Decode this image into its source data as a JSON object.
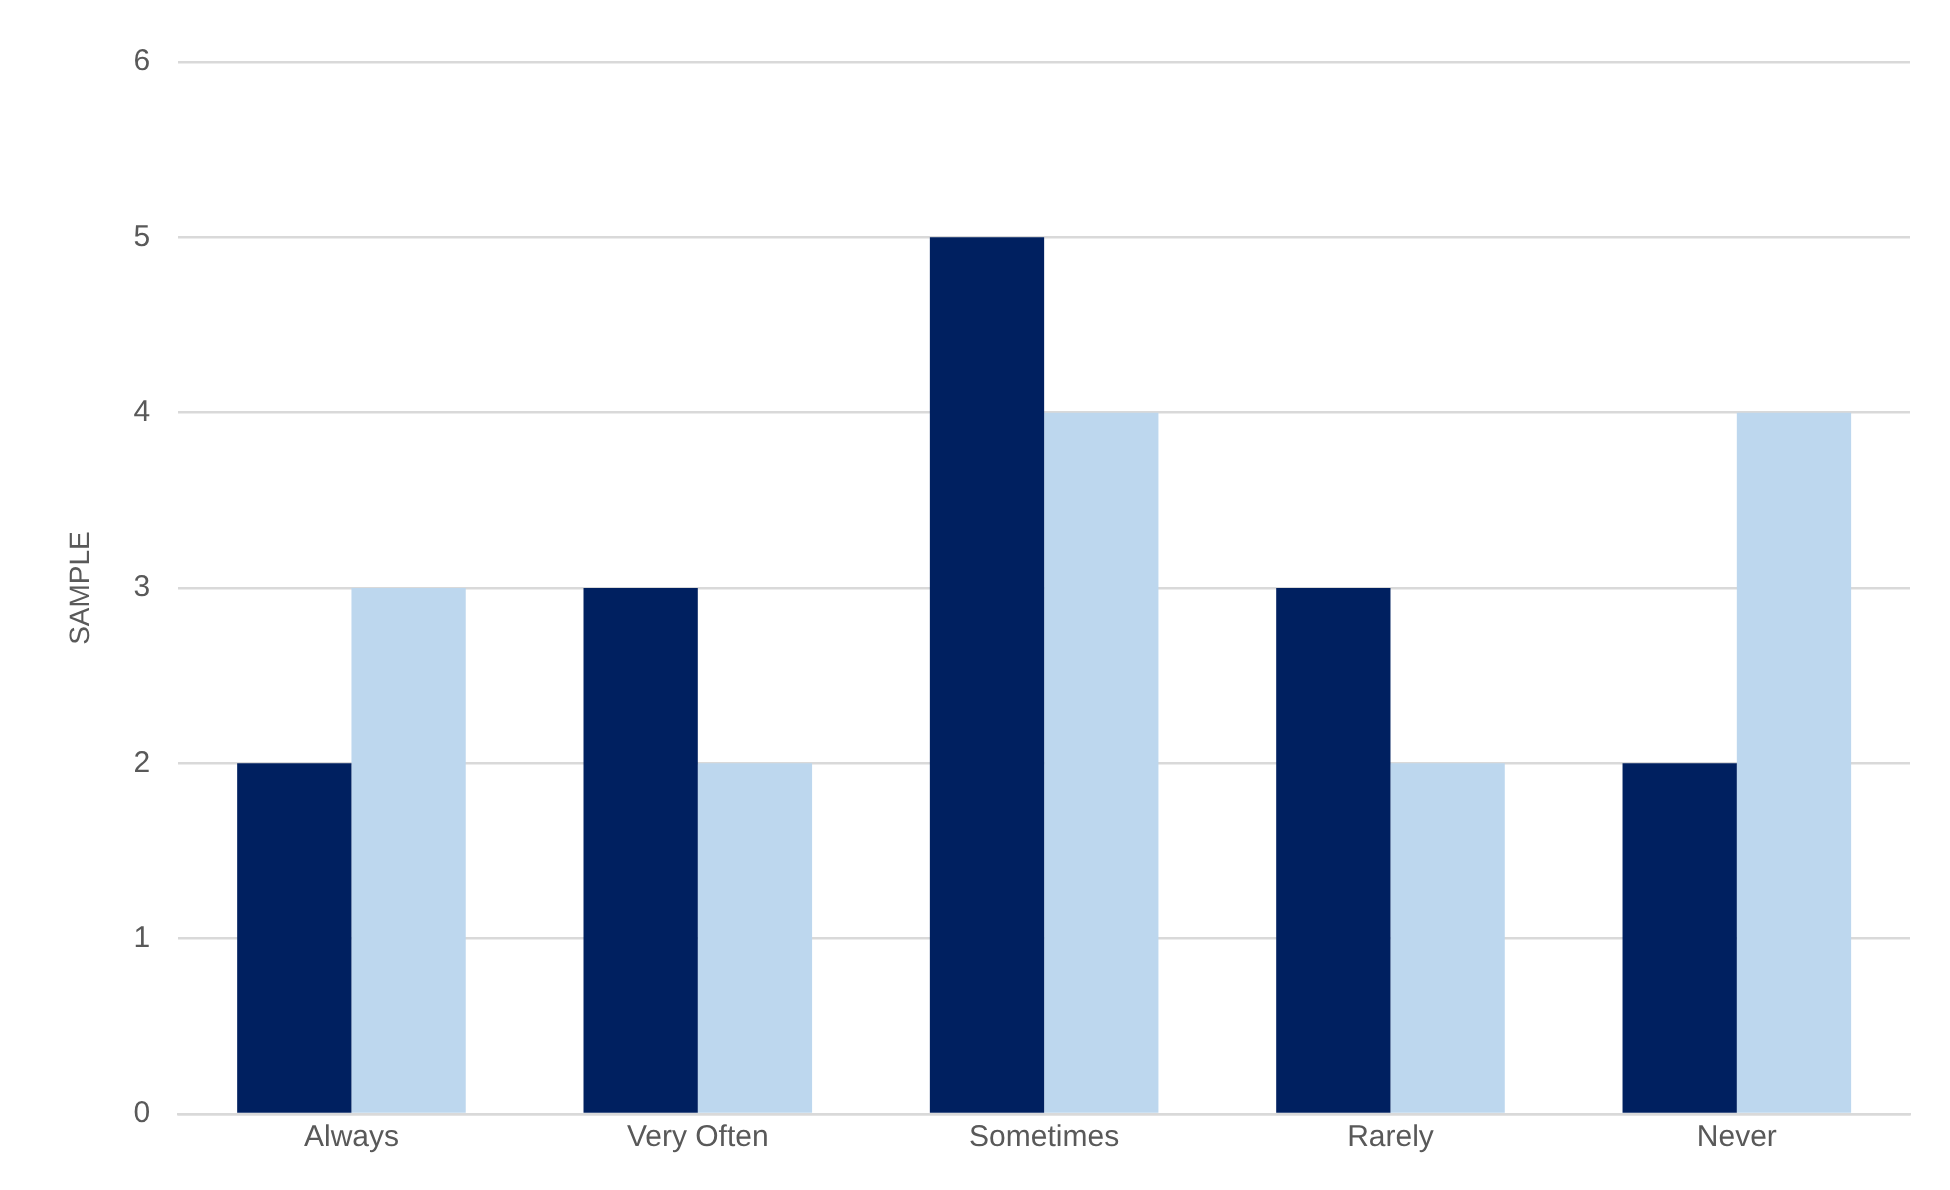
{
  "chart_data": {
    "type": "bar",
    "ylabel": "SAMPLE",
    "categories": [
      "Always",
      "Very Often",
      "Sometimes",
      "Rarely",
      "Never"
    ],
    "series": [
      {
        "color": "#002060",
        "values": [
          2,
          3,
          5,
          3,
          2
        ]
      },
      {
        "color": "#bdd7ee",
        "values": [
          3,
          2,
          4,
          2,
          4
        ]
      }
    ],
    "ylim": [
      0,
      6
    ],
    "yticks": [
      0,
      1,
      2,
      3,
      4,
      5,
      6
    ],
    "grid": "y",
    "legend": false
  }
}
